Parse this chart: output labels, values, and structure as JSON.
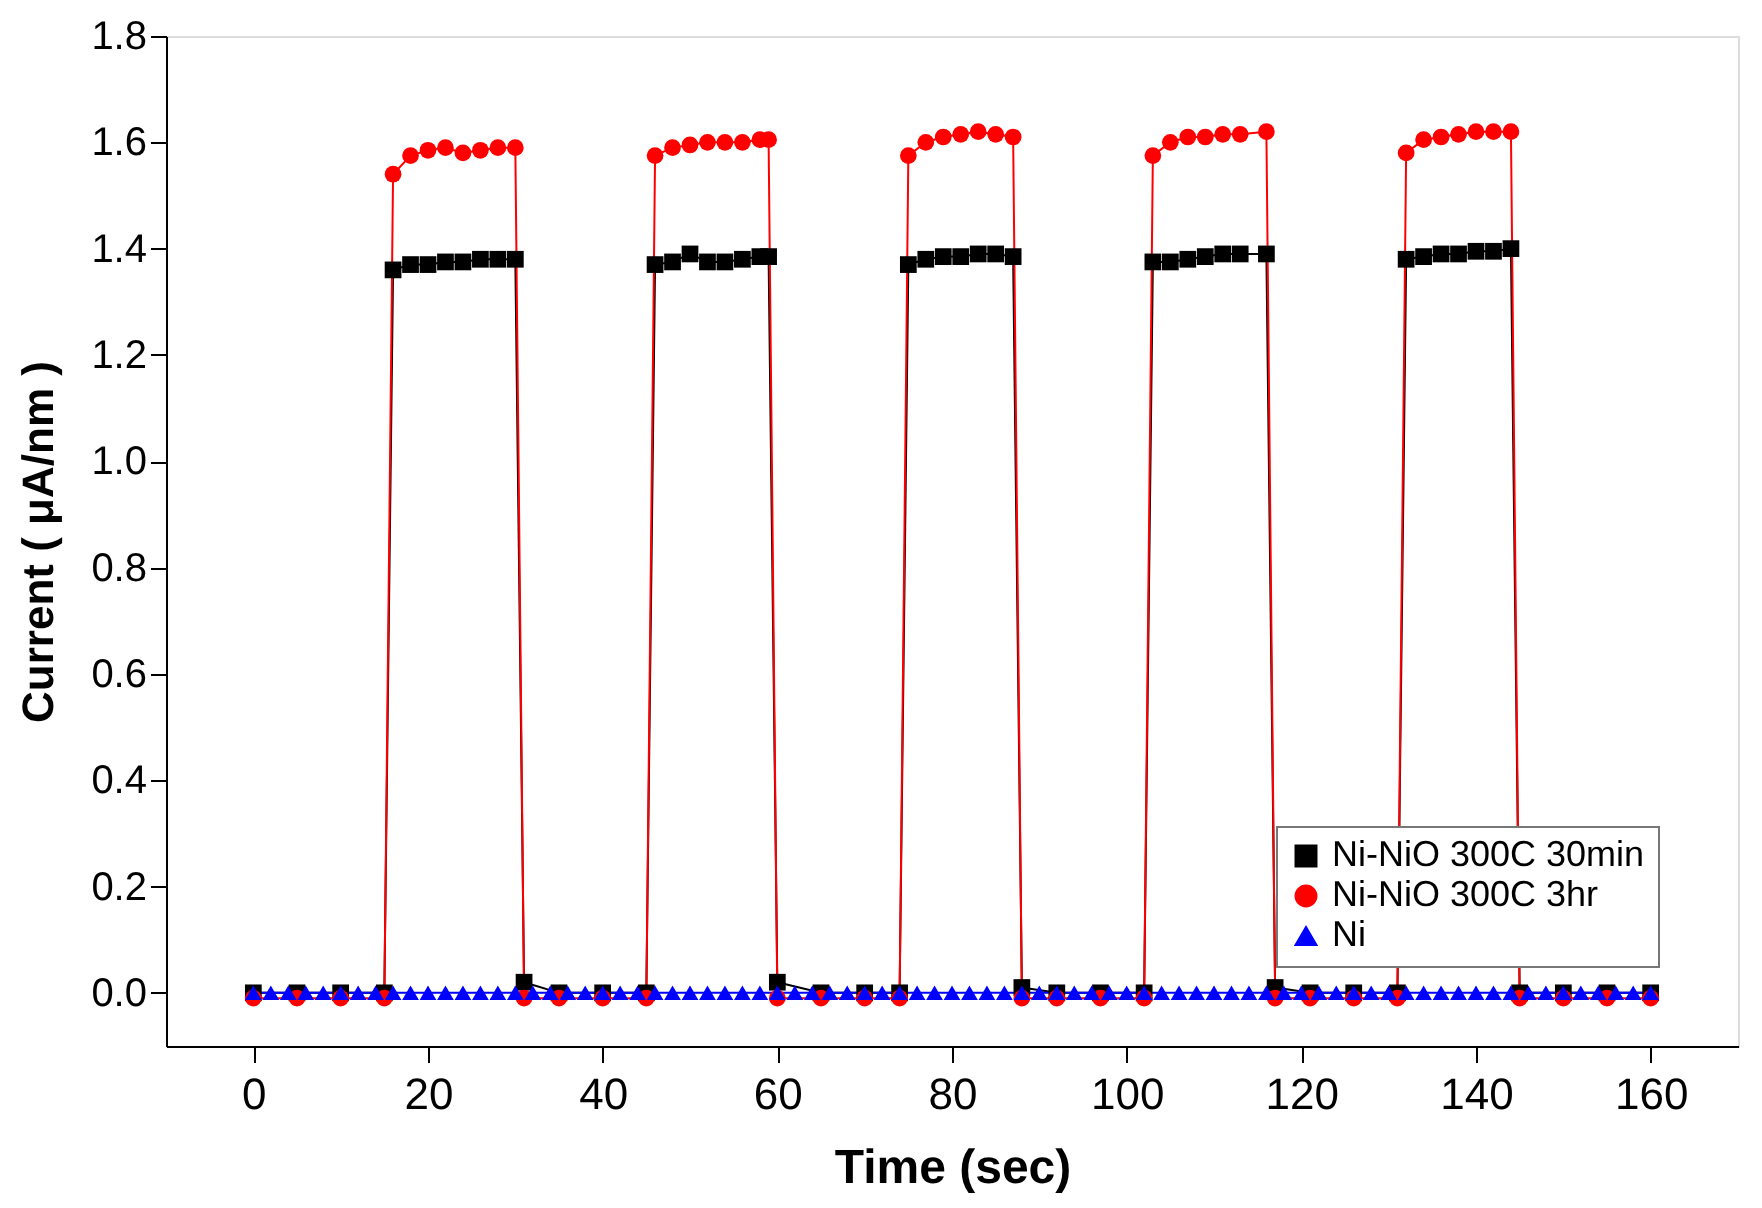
{
  "chart_data": {
    "type": "line",
    "xlabel": "Time (sec)",
    "ylabel": "Current ( μA/nm )",
    "xlim": [
      -10,
      170
    ],
    "xticks": [
      0,
      20,
      40,
      60,
      80,
      100,
      120,
      140,
      160
    ],
    "ylim": [
      -0.1,
      1.8
    ],
    "yticks": [
      {
        "value": 0,
        "label": "0.0"
      },
      {
        "value": 0.2,
        "label": "0.2"
      },
      {
        "value": 0.4,
        "label": "0.4"
      },
      {
        "value": 0.6,
        "label": "0.6"
      },
      {
        "value": 0.8,
        "label": "0.8"
      },
      {
        "value": 1,
        "label": "1.0"
      },
      {
        "value": 1.2,
        "label": "1.2"
      },
      {
        "value": 1.4,
        "label": "1.4"
      },
      {
        "value": 1.6,
        "label": "1.6"
      },
      {
        "value": 1.8,
        "label": "1.8"
      }
    ],
    "grid": false,
    "legend": "bottom right",
    "line_style": "solid",
    "series": [
      {
        "name": "Ni-NiO 300C 30min",
        "color": "#000000",
        "marker": "square",
        "x": [
          0,
          5,
          10,
          15,
          16,
          18,
          20,
          22,
          24,
          26,
          28,
          30,
          31,
          35,
          40,
          45,
          46,
          48,
          50,
          52,
          54,
          56,
          58,
          59,
          60,
          65,
          70,
          74,
          75,
          77,
          79,
          81,
          83,
          85,
          87,
          88,
          92,
          97,
          102,
          103,
          105,
          107,
          109,
          111,
          113,
          116,
          117,
          121,
          126,
          131,
          132,
          134,
          136,
          138,
          140,
          142,
          144,
          145,
          150,
          155,
          160
        ],
        "values": [
          0,
          0,
          0,
          0,
          1.36,
          1.37,
          1.37,
          1.375,
          1.375,
          1.38,
          1.38,
          1.38,
          0.02,
          0,
          0,
          0,
          1.37,
          1.375,
          1.39,
          1.375,
          1.375,
          1.38,
          1.385,
          1.385,
          0.02,
          0,
          0,
          0,
          1.37,
          1.38,
          1.385,
          1.385,
          1.39,
          1.39,
          1.385,
          0.01,
          0,
          0,
          0,
          1.375,
          1.375,
          1.38,
          1.385,
          1.39,
          1.39,
          1.39,
          0.01,
          0,
          0,
          0,
          1.38,
          1.385,
          1.39,
          1.39,
          1.395,
          1.395,
          1.4,
          0,
          0,
          0,
          0
        ]
      },
      {
        "name": "Ni-NiO 300C 3hr",
        "color": "#ff0000",
        "marker": "circle",
        "x": [
          0,
          5,
          10,
          15,
          16,
          18,
          20,
          22,
          24,
          26,
          28,
          30,
          31,
          35,
          40,
          45,
          46,
          48,
          50,
          52,
          54,
          56,
          58,
          59,
          60,
          65,
          70,
          74,
          75,
          77,
          79,
          81,
          83,
          85,
          87,
          88,
          92,
          97,
          102,
          103,
          105,
          107,
          109,
          111,
          113,
          116,
          117,
          121,
          126,
          131,
          132,
          134,
          136,
          138,
          140,
          142,
          144,
          145,
          150,
          155,
          160
        ],
        "values": [
          -0.01,
          -0.01,
          -0.01,
          -0.01,
          1.54,
          1.575,
          1.585,
          1.59,
          1.58,
          1.585,
          1.59,
          1.59,
          -0.01,
          -0.01,
          -0.01,
          -0.01,
          1.575,
          1.59,
          1.595,
          1.6,
          1.6,
          1.6,
          1.605,
          1.605,
          -0.01,
          -0.01,
          -0.01,
          -0.01,
          1.575,
          1.6,
          1.61,
          1.615,
          1.62,
          1.615,
          1.61,
          -0.01,
          -0.01,
          -0.01,
          -0.01,
          1.575,
          1.6,
          1.61,
          1.61,
          1.615,
          1.615,
          1.62,
          -0.01,
          -0.01,
          -0.01,
          -0.01,
          1.58,
          1.605,
          1.61,
          1.615,
          1.62,
          1.62,
          1.62,
          -0.01,
          -0.01,
          -0.01,
          -0.01
        ]
      },
      {
        "name": "Ni",
        "color": "#0000ff",
        "marker": "triangle",
        "x": [
          0,
          2,
          4,
          6,
          8,
          10,
          12,
          14,
          16,
          18,
          20,
          22,
          24,
          26,
          28,
          30,
          32,
          34,
          36,
          38,
          40,
          42,
          44,
          46,
          48,
          50,
          52,
          54,
          56,
          58,
          60,
          62,
          64,
          66,
          68,
          70,
          72,
          74,
          76,
          78,
          80,
          82,
          84,
          86,
          88,
          90,
          92,
          94,
          96,
          98,
          100,
          102,
          104,
          106,
          108,
          110,
          112,
          114,
          116,
          118,
          120,
          122,
          124,
          126,
          128,
          130,
          132,
          134,
          136,
          138,
          140,
          142,
          144,
          146,
          148,
          150,
          152,
          154,
          156,
          158,
          160
        ],
        "values": [
          0,
          0,
          0,
          0,
          0,
          0,
          0,
          0,
          0,
          0,
          0,
          0,
          0,
          0,
          0,
          0,
          0,
          0,
          0,
          0,
          0,
          0,
          0,
          0,
          0,
          0,
          0,
          0,
          0,
          0,
          0,
          0,
          0,
          0,
          0,
          0,
          0,
          0,
          0,
          0,
          0,
          0,
          0,
          0,
          0,
          0,
          0,
          0,
          0,
          0,
          0,
          0,
          0,
          0,
          0,
          0,
          0,
          0,
          0,
          0,
          0,
          0,
          0,
          0,
          0,
          0,
          0,
          0,
          0,
          0,
          0,
          0,
          0,
          0,
          0,
          0,
          0,
          0,
          0,
          0,
          0
        ]
      }
    ]
  }
}
